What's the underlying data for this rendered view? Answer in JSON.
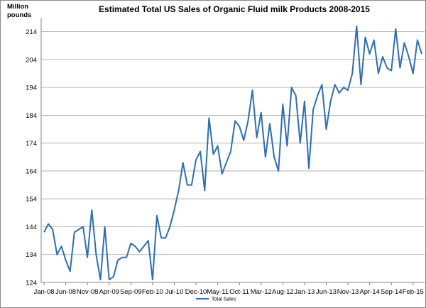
{
  "chart_data": {
    "type": "line",
    "title": "Estimated Total US Sales of Organic Fluid milk Products 2008-2015",
    "ylabel": "Million pounds",
    "xlabel": "",
    "ylim": [
      124,
      219
    ],
    "yticks": [
      124,
      134,
      144,
      154,
      164,
      174,
      184,
      194,
      204,
      214
    ],
    "xtick_labels": [
      "Jan-08",
      "Jun-08",
      "Nov-08",
      "Apr-09",
      "Sep-09",
      "Feb-10",
      "Jul-10",
      "Dec-10",
      "May-11",
      "Oct-11",
      "Mar-12",
      "Aug-12",
      "Jan-13",
      "Jun-13",
      "Nov-13",
      "Apr-14",
      "Sep-14",
      "Feb-15"
    ],
    "xtick_step_months": 5,
    "grid": "horizontal",
    "legend_position": "bottom-center",
    "line_color": "#2e6db4",
    "series": [
      {
        "name": "Total Sales",
        "values": [
          142,
          145,
          143,
          134,
          137,
          132,
          128,
          142,
          143,
          144,
          133,
          150,
          134,
          125,
          144,
          125,
          126,
          132,
          133,
          133,
          138,
          137,
          135,
          137,
          139,
          125,
          148,
          140,
          140,
          144,
          150,
          157,
          167,
          159,
          159,
          168,
          171,
          157,
          183,
          170,
          173,
          163,
          167,
          171,
          182,
          180,
          175,
          182,
          193,
          176,
          185,
          169,
          181,
          169,
          164,
          188,
          173,
          194,
          191,
          174,
          189,
          165,
          186,
          191,
          195,
          179,
          189,
          195,
          192,
          194,
          193,
          199,
          216,
          195,
          212,
          206,
          211,
          199,
          205,
          201,
          200,
          215,
          201,
          210,
          205,
          199,
          211,
          206
        ]
      }
    ]
  }
}
